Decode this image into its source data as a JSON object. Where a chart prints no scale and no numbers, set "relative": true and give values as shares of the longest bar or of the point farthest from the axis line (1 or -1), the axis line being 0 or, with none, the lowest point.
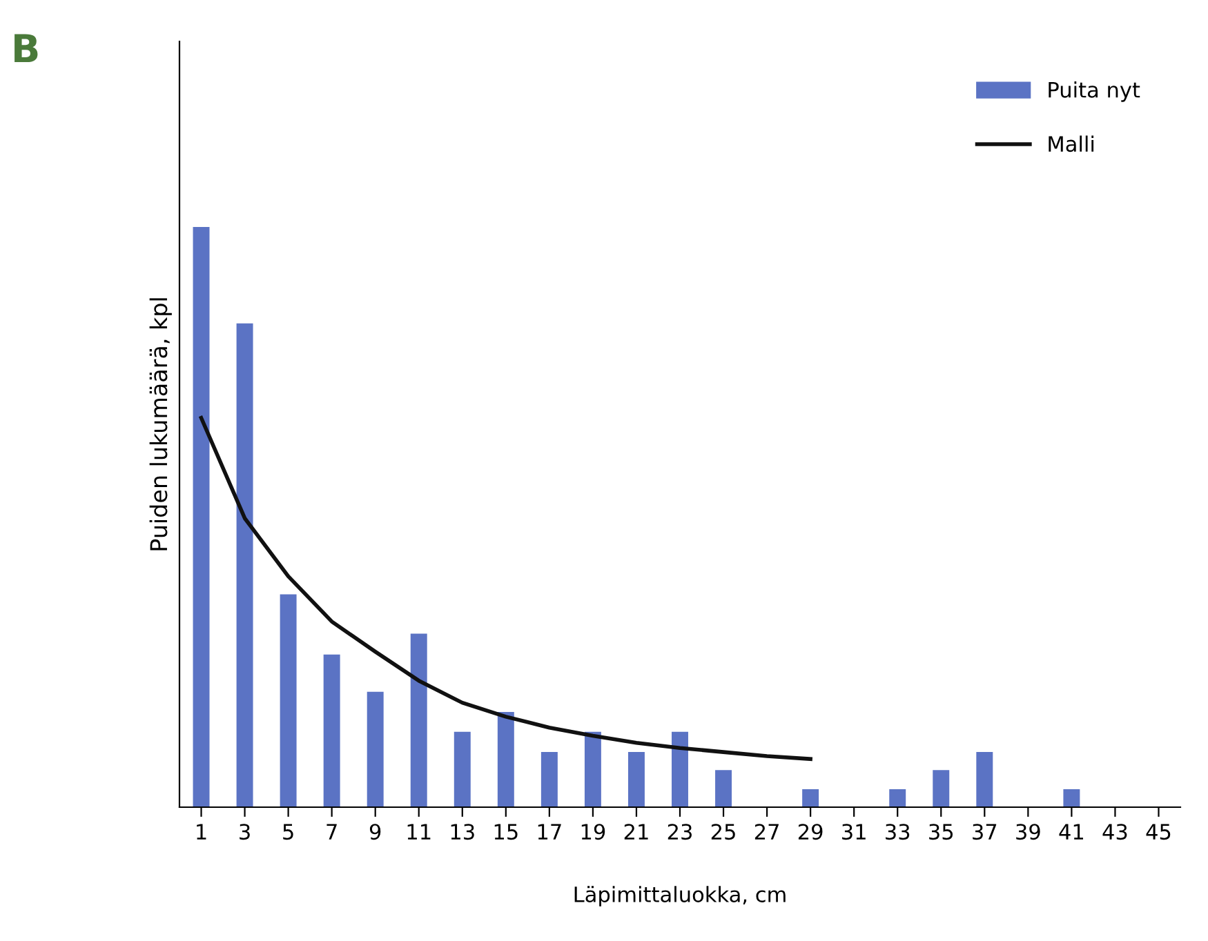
{
  "chart_data": {
    "type": "bar",
    "relative": true,
    "xlabel": "Läpimittaluokka, cm",
    "ylabel": "Puiden lukumäärä, kpl",
    "annotations": [
      "B"
    ],
    "categories": [
      "1",
      "3",
      "5",
      "7",
      "9",
      "11",
      "13",
      "15",
      "17",
      "19",
      "21",
      "23",
      "25",
      "27",
      "29",
      "31",
      "33",
      "35",
      "37",
      "39",
      "41",
      "43",
      "45"
    ],
    "series": [
      {
        "name": "Puita nyt",
        "color": "#5b73c4",
        "values": [
          1,
          0.834,
          0.367,
          0.263,
          0.199,
          0.299,
          0.13,
          0.164,
          0.095,
          0.13,
          0.095,
          0.13,
          0.064,
          0,
          0.031,
          0,
          0.031,
          0.064,
          0.095,
          0,
          0.031,
          0,
          0
        ]
      },
      {
        "name": "Malli",
        "type": "line",
        "color": "#111111",
        "values": [
          0.671,
          0.498,
          0.398,
          0.32,
          0.268,
          0.218,
          0.18,
          0.156,
          0.137,
          0.123,
          0.111,
          0.102,
          0.095,
          0.088,
          0.083,
          null,
          null,
          null,
          null,
          null,
          null,
          null,
          null
        ]
      }
    ],
    "legend": "top right",
    "grid": false,
    "marker": "none",
    "line_style": "solid"
  }
}
